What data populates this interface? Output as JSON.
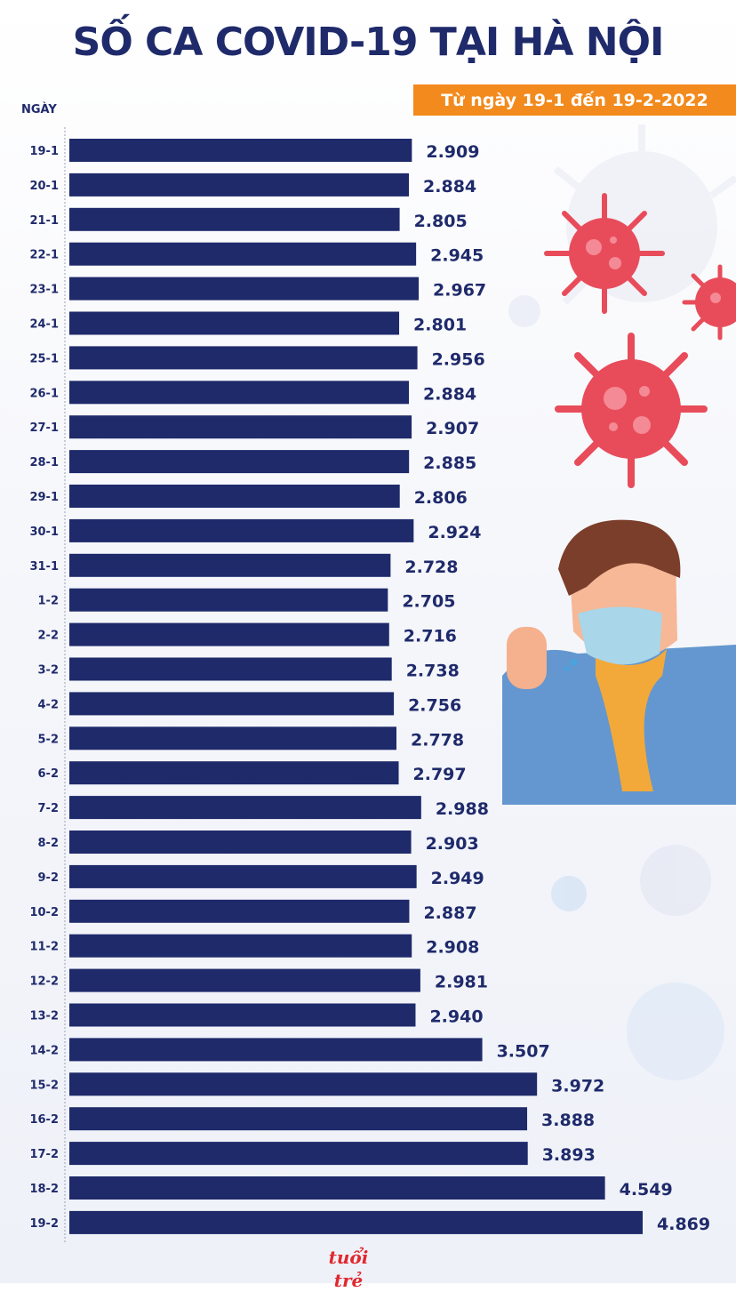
{
  "header": {
    "title": "SỐ CA COVID-19 TẠI HÀ NỘI",
    "subtitle": "Từ ngày 19-1 đến 19-2-2022",
    "axis_label": "NGÀY"
  },
  "footer": {
    "logo_text": "tuổi trẻ"
  },
  "colors": {
    "bar": "#1f2a6b",
    "banner": "#f28a1d",
    "text": "#1f2a6b",
    "virus_red": "#e84c5a"
  },
  "chart_data": {
    "type": "bar",
    "orientation": "horizontal",
    "title": "SỐ CA COVID-19 TẠI HÀ NỘI",
    "subtitle": "Từ ngày 19-1 đến 19-2-2022",
    "ylabel": "NGÀY",
    "xlabel": "",
    "xlim": [
      0,
      5000
    ],
    "grid": false,
    "legend": "none",
    "categories": [
      "19-1",
      "20-1",
      "21-1",
      "22-1",
      "23-1",
      "24-1",
      "25-1",
      "26-1",
      "27-1",
      "28-1",
      "29-1",
      "30-1",
      "31-1",
      "1-2",
      "2-2",
      "3-2",
      "4-2",
      "5-2",
      "6-2",
      "7-2",
      "8-2",
      "9-2",
      "10-2",
      "11-2",
      "12-2",
      "13-2",
      "14-2",
      "15-2",
      "16-2",
      "17-2",
      "18-2",
      "19-2"
    ],
    "values": [
      2909,
      2884,
      2805,
      2945,
      2967,
      2801,
      2956,
      2884,
      2907,
      2885,
      2806,
      2924,
      2728,
      2705,
      2716,
      2738,
      2756,
      2778,
      2797,
      2988,
      2903,
      2949,
      2887,
      2908,
      2981,
      2940,
      3507,
      3972,
      3888,
      3893,
      4549,
      4869
    ],
    "value_labels": [
      "2.909",
      "2.884",
      "2.805",
      "2.945",
      "2.967",
      "2.801",
      "2.956",
      "2.884",
      "2.907",
      "2.885",
      "2.806",
      "2.924",
      "2.728",
      "2.705",
      "2.716",
      "2.738",
      "2.756",
      "2.778",
      "2.797",
      "2.988",
      "2.903",
      "2.949",
      "2.887",
      "2.908",
      "2.981",
      "2.940",
      "3.507",
      "3.972",
      "3.888",
      "3.893",
      "4.549",
      "4.869"
    ]
  }
}
